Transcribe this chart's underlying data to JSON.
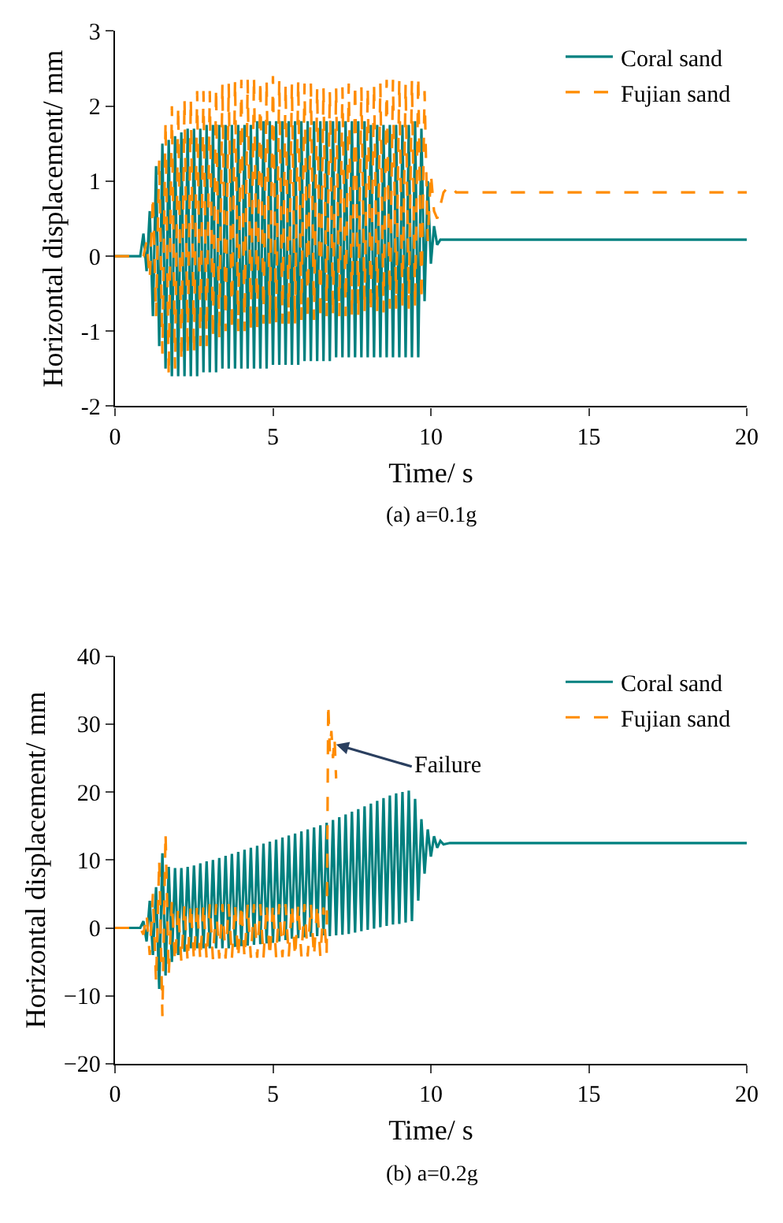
{
  "chart_data": [
    {
      "type": "line",
      "title": "(a) a=0.1g",
      "xlabel": "Time/ s",
      "ylabel": "Horizontal displacement/ mm",
      "xlim": [
        0,
        20
      ],
      "ylim": [
        -2,
        3
      ],
      "xticks": [
        0,
        5,
        10,
        15,
        20
      ],
      "yticks": [
        -2,
        -1,
        0,
        1,
        2,
        3
      ],
      "legend": "top right",
      "series": [
        {
          "name": "Coral sand",
          "color": "#00807f",
          "line_style": "solid",
          "x": [
            0,
            0.8,
            0.9,
            1.0,
            1.1,
            1.2,
            1.3,
            1.4,
            1.5,
            1.6,
            1.7,
            1.8,
            1.9,
            2.0,
            2.1,
            2.2,
            2.3,
            2.4,
            2.5,
            2.6,
            2.7,
            2.8,
            2.9,
            3.0,
            3.1,
            3.2,
            3.3,
            3.4,
            3.5,
            3.6,
            3.7,
            3.8,
            3.9,
            4.0,
            4.1,
            4.2,
            4.3,
            4.4,
            4.5,
            4.6,
            4.7,
            4.8,
            4.9,
            5.0,
            5.1,
            5.2,
            5.3,
            5.4,
            5.5,
            5.6,
            5.7,
            5.8,
            5.9,
            6.0,
            6.1,
            6.2,
            6.3,
            6.4,
            6.5,
            6.6,
            6.7,
            6.8,
            6.9,
            7.0,
            7.1,
            7.2,
            7.3,
            7.4,
            7.5,
            7.6,
            7.7,
            7.8,
            7.9,
            8.0,
            8.1,
            8.2,
            8.3,
            8.4,
            8.5,
            8.6,
            8.7,
            8.8,
            8.9,
            9.0,
            9.1,
            9.2,
            9.3,
            9.4,
            9.5,
            9.6,
            9.7,
            9.8,
            9.9,
            10.0,
            10.1,
            10.2,
            10.3,
            20
          ],
          "values": [
            0,
            0,
            0.3,
            -0.2,
            0.6,
            -0.8,
            1.2,
            -1.2,
            1.5,
            -1.5,
            1.55,
            -1.6,
            1.6,
            -1.6,
            1.65,
            -1.6,
            1.7,
            -1.6,
            1.7,
            -1.6,
            1.7,
            -1.55,
            1.75,
            -1.55,
            1.75,
            -1.55,
            1.75,
            -1.5,
            1.75,
            -1.5,
            1.75,
            -1.5,
            1.75,
            -1.5,
            1.75,
            -1.5,
            1.75,
            -1.5,
            1.8,
            -1.5,
            1.8,
            -1.5,
            1.8,
            -1.45,
            1.8,
            -1.45,
            1.8,
            -1.45,
            1.8,
            -1.45,
            1.8,
            -1.45,
            1.8,
            -1.4,
            1.8,
            -1.4,
            1.8,
            -1.4,
            1.8,
            -1.4,
            1.8,
            -1.4,
            1.8,
            -1.35,
            1.8,
            -1.35,
            1.8,
            -1.35,
            1.8,
            -1.35,
            1.8,
            -1.35,
            1.8,
            -1.35,
            1.75,
            -1.35,
            1.75,
            -1.35,
            1.75,
            -1.35,
            1.75,
            -1.35,
            1.75,
            -1.35,
            1.75,
            -1.35,
            1.75,
            -1.35,
            1.8,
            -1.35,
            1.7,
            -0.6,
            1.0,
            -0.1,
            0.4,
            0.15,
            0.22,
            0.22
          ]
        },
        {
          "name": "Fujian sand",
          "color": "#ff8c00",
          "line_style": "dashed",
          "x": [
            0,
            0.8,
            0.9,
            1.0,
            1.1,
            1.2,
            1.3,
            1.4,
            1.5,
            1.6,
            1.7,
            1.8,
            1.9,
            2.0,
            2.1,
            2.2,
            2.3,
            2.4,
            2.5,
            2.6,
            2.7,
            2.8,
            2.9,
            3.0,
            3.1,
            3.2,
            3.3,
            3.4,
            3.5,
            3.6,
            3.7,
            3.8,
            3.9,
            4.0,
            4.1,
            4.2,
            4.3,
            4.4,
            4.5,
            4.6,
            4.7,
            4.8,
            4.9,
            5.0,
            5.1,
            5.2,
            5.3,
            5.4,
            5.5,
            5.6,
            5.7,
            5.8,
            5.9,
            6.0,
            6.1,
            6.2,
            6.3,
            6.4,
            6.5,
            6.6,
            6.7,
            6.8,
            6.9,
            7.0,
            7.1,
            7.2,
            7.3,
            7.4,
            7.5,
            7.6,
            7.7,
            7.8,
            7.9,
            8.0,
            8.1,
            8.2,
            8.3,
            8.4,
            8.5,
            8.6,
            8.7,
            8.8,
            8.9,
            9.0,
            9.1,
            9.2,
            9.3,
            9.4,
            9.5,
            9.6,
            9.7,
            9.8,
            9.9,
            10.0,
            10.1,
            10.2,
            10.4,
            10.6,
            10.8,
            20
          ],
          "values": [
            0,
            0,
            0,
            0.2,
            -0.3,
            0.8,
            -0.8,
            1.3,
            -1.3,
            1.8,
            -1.6,
            2.0,
            -1.5,
            2.0,
            -1.4,
            2.1,
            -1.3,
            2.1,
            -1.3,
            2.2,
            -1.2,
            2.2,
            -1.2,
            2.2,
            -1.1,
            2.25,
            -1.1,
            2.3,
            -1.0,
            2.3,
            -1.0,
            2.35,
            -1.0,
            2.35,
            -1.0,
            2.35,
            -1.0,
            2.4,
            -1.0,
            2.35,
            -0.9,
            2.35,
            -0.9,
            2.4,
            -0.9,
            2.35,
            -0.9,
            2.3,
            -0.9,
            2.3,
            -0.9,
            2.35,
            -0.85,
            2.3,
            -0.85,
            2.3,
            -0.85,
            2.25,
            -0.85,
            2.25,
            -0.8,
            2.2,
            -0.8,
            2.25,
            -0.8,
            2.25,
            -0.8,
            2.3,
            -0.8,
            2.3,
            -0.8,
            2.25,
            -0.75,
            2.25,
            -0.75,
            2.3,
            -0.75,
            2.3,
            -0.75,
            2.35,
            -0.7,
            2.35,
            -0.7,
            2.35,
            -0.7,
            2.3,
            -0.7,
            2.35,
            -0.7,
            2.4,
            -0.6,
            2.2,
            0.2,
            1.1,
            0.6,
            0.5,
            0.85,
            0.95,
            0.85,
            0.85
          ]
        }
      ]
    },
    {
      "type": "line",
      "title": "(b) a=0.2g",
      "xlabel": "Time/ s",
      "ylabel": "Horizontal displacement/ mm",
      "xlim": [
        0,
        20
      ],
      "ylim": [
        -20,
        40
      ],
      "xticks": [
        0,
        5,
        10,
        15,
        20
      ],
      "yticks": [
        {
          "value": -20,
          "label": "−20"
        },
        {
          "value": -10,
          "label": "−10"
        },
        0,
        10,
        20,
        30,
        40
      ],
      "legend": "top right",
      "annotations": [
        {
          "text": "Failure",
          "x": 7.0,
          "y": 27
        }
      ],
      "series": [
        {
          "name": "Coral sand",
          "color": "#00807f",
          "line_style": "solid",
          "x": [
            0,
            0.8,
            0.9,
            1.0,
            1.1,
            1.2,
            1.3,
            1.4,
            1.5,
            1.6,
            1.7,
            1.8,
            1.9,
            2.0,
            2.1,
            2.2,
            2.3,
            2.4,
            2.5,
            2.6,
            2.7,
            2.8,
            2.9,
            3.0,
            3.1,
            3.2,
            3.3,
            3.4,
            3.5,
            3.6,
            3.7,
            3.8,
            3.9,
            4.0,
            4.1,
            4.2,
            4.3,
            4.4,
            4.5,
            4.6,
            4.7,
            4.8,
            4.9,
            5.0,
            5.1,
            5.2,
            5.3,
            5.4,
            5.5,
            5.6,
            5.7,
            5.8,
            5.9,
            6.0,
            6.1,
            6.2,
            6.3,
            6.4,
            6.5,
            6.6,
            6.7,
            6.8,
            6.9,
            7.0,
            7.1,
            7.2,
            7.3,
            7.4,
            7.5,
            7.6,
            7.7,
            7.8,
            7.9,
            8.0,
            8.1,
            8.2,
            8.3,
            8.4,
            8.5,
            8.6,
            8.7,
            8.8,
            8.9,
            9.0,
            9.1,
            9.2,
            9.3,
            9.4,
            9.5,
            9.6,
            9.7,
            9.8,
            9.9,
            10.0,
            10.1,
            10.2,
            10.3,
            10.4,
            10.6,
            20
          ],
          "values": [
            0,
            0,
            1,
            -2,
            4,
            -4,
            6,
            -9,
            11,
            -7,
            9,
            -5,
            8.8,
            -4,
            8.8,
            -3.5,
            9,
            -3,
            9.2,
            -3,
            9.5,
            -3,
            9.8,
            -3,
            10,
            -3,
            10.3,
            -3,
            10.6,
            -3,
            10.9,
            -2.8,
            11.2,
            -2.7,
            11.5,
            -2.6,
            11.8,
            -2.5,
            12.1,
            -2.4,
            12.4,
            -2.3,
            12.7,
            -2.2,
            13,
            -2,
            13.3,
            -1.8,
            13.6,
            -1.6,
            13.9,
            -1.5,
            14.2,
            -1.4,
            14.5,
            -1.3,
            14.8,
            -1.2,
            15.1,
            -1.1,
            15.5,
            -1.2,
            15.9,
            -1.1,
            16.3,
            -1,
            16.7,
            -0.9,
            17.1,
            -0.7,
            17.5,
            -0.5,
            17.9,
            -0.3,
            18.3,
            -0.1,
            18.7,
            0.1,
            19.1,
            0.3,
            19.5,
            0.5,
            19.8,
            0.6,
            20,
            0.8,
            20.2,
            1,
            19,
            4,
            16,
            8,
            14.5,
            10.5,
            13.5,
            11.8,
            12.8,
            12.3,
            12.5,
            12.5
          ]
        },
        {
          "name": "Fujian sand",
          "color": "#ff8c00",
          "line_style": "dashed",
          "x": [
            0,
            0.8,
            0.9,
            1.0,
            1.1,
            1.2,
            1.3,
            1.4,
            1.5,
            1.6,
            1.7,
            1.8,
            1.9,
            2.0,
            2.1,
            2.2,
            2.3,
            2.4,
            2.5,
            2.6,
            2.7,
            2.8,
            2.9,
            3.0,
            3.1,
            3.2,
            3.3,
            3.4,
            3.5,
            3.6,
            3.7,
            3.8,
            3.9,
            4.0,
            4.1,
            4.2,
            4.3,
            4.4,
            4.5,
            4.6,
            4.7,
            4.8,
            4.9,
            5.0,
            5.1,
            5.2,
            5.3,
            5.4,
            5.5,
            5.6,
            5.7,
            5.8,
            5.9,
            6.0,
            6.1,
            6.2,
            6.3,
            6.4,
            6.5,
            6.6,
            6.7,
            6.75,
            6.8,
            6.85,
            6.9,
            6.95,
            7.0
          ],
          "values": [
            0,
            0,
            -1,
            2,
            -4,
            5,
            -8,
            10,
            -13,
            14,
            -7,
            4,
            -5,
            3,
            -5,
            3.5,
            -5,
            3.5,
            -4.8,
            3.5,
            -4.8,
            3.5,
            -4.6,
            3.5,
            -4.6,
            3.5,
            -4.5,
            3.5,
            -4.5,
            3.5,
            -4.5,
            3.5,
            -4.5,
            3.5,
            -4.4,
            3.5,
            -4.4,
            3.5,
            -4.4,
            3.5,
            -4.4,
            3.5,
            -4.3,
            3.5,
            -4.3,
            3.5,
            -4.3,
            3.5,
            -4.3,
            3.5,
            -4.3,
            3.5,
            -4.2,
            3.5,
            -4.2,
            3.5,
            -4.2,
            3.5,
            -4.2,
            3,
            -4,
            33,
            26,
            29,
            25,
            28,
            22
          ]
        }
      ]
    }
  ]
}
